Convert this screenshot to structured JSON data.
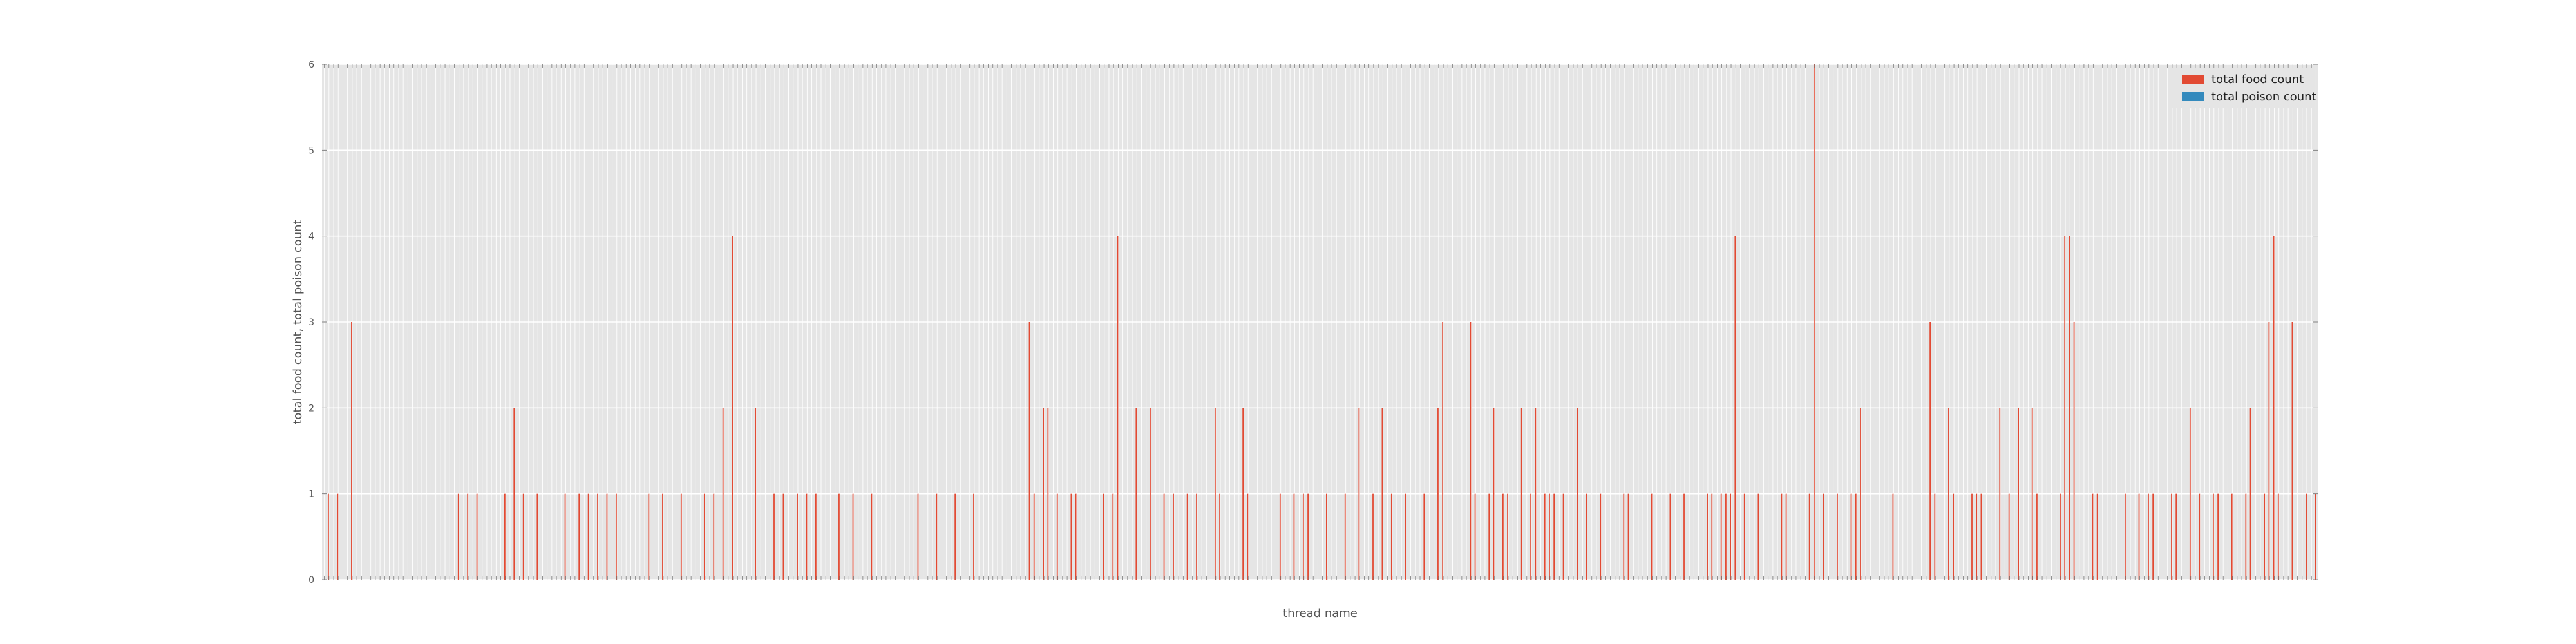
{
  "chart_data": {
    "type": "bar",
    "xlabel": "thread name",
    "ylabel": "total food count, total poison count",
    "ylim": [
      0,
      6
    ],
    "yticks": [
      0,
      1,
      2,
      3,
      4,
      5,
      6
    ],
    "grid": true,
    "legend_position": "top-right",
    "series": [
      {
        "name": "total food count",
        "color": "#e24a33",
        "values": [
          0,
          1,
          0,
          1,
          0,
          0,
          3,
          0,
          0,
          0,
          0,
          0,
          0,
          0,
          0,
          0,
          0,
          0,
          0,
          0,
          0,
          0,
          0,
          0,
          0,
          0,
          0,
          0,
          0,
          1,
          0,
          1,
          0,
          1,
          0,
          0,
          0,
          0,
          0,
          1,
          0,
          2,
          0,
          1,
          0,
          0,
          1,
          0,
          0,
          0,
          0,
          0,
          1,
          0,
          0,
          1,
          0,
          1,
          0,
          1,
          0,
          1,
          0,
          1,
          0,
          0,
          0,
          0,
          0,
          0,
          1,
          0,
          0,
          1,
          0,
          0,
          0,
          1,
          0,
          0,
          0,
          0,
          1,
          0,
          1,
          0,
          2,
          0,
          4,
          0,
          0,
          0,
          0,
          2,
          0,
          0,
          0,
          1,
          0,
          1,
          0,
          0,
          1,
          0,
          1,
          0,
          1,
          0,
          0,
          0,
          0,
          1,
          0,
          0,
          1,
          0,
          0,
          0,
          1,
          0,
          0,
          0,
          0,
          0,
          0,
          0,
          0,
          0,
          1,
          0,
          0,
          0,
          1,
          0,
          0,
          0,
          1,
          0,
          0,
          0,
          1,
          0,
          0,
          0,
          0,
          0,
          0,
          0,
          0,
          0,
          0,
          0,
          3,
          1,
          0,
          2,
          2,
          0,
          1,
          0,
          0,
          1,
          1,
          0,
          0,
          0,
          0,
          0,
          1,
          0,
          1,
          4,
          0,
          0,
          0,
          2,
          0,
          0,
          2,
          0,
          0,
          1,
          0,
          1,
          0,
          0,
          1,
          0,
          1,
          0,
          0,
          0,
          2,
          1,
          0,
          0,
          0,
          0,
          2,
          1,
          0,
          0,
          0,
          0,
          0,
          0,
          1,
          0,
          0,
          1,
          0,
          1,
          1,
          0,
          0,
          0,
          1,
          0,
          0,
          0,
          1,
          0,
          0,
          2,
          0,
          0,
          1,
          0,
          2,
          0,
          1,
          0,
          0,
          1,
          0,
          0,
          0,
          1,
          0,
          0,
          2,
          3,
          0,
          0,
          0,
          0,
          0,
          3,
          1,
          0,
          0,
          1,
          2,
          0,
          1,
          1,
          0,
          0,
          2,
          0,
          1,
          2,
          0,
          1,
          1,
          1,
          0,
          1,
          0,
          0,
          2,
          0,
          1,
          0,
          0,
          1,
          0,
          0,
          0,
          0,
          1,
          1,
          0,
          0,
          0,
          0,
          1,
          0,
          0,
          0,
          1,
          0,
          0,
          1,
          0,
          0,
          0,
          0,
          1,
          1,
          0,
          1,
          1,
          1,
          4,
          0,
          1,
          0,
          0,
          1,
          0,
          0,
          0,
          0,
          1,
          1,
          0,
          0,
          0,
          0,
          1,
          6,
          0,
          1,
          0,
          0,
          1,
          0,
          0,
          1,
          1,
          2,
          0,
          0,
          0,
          0,
          0,
          0,
          1,
          0,
          0,
          0,
          0,
          0,
          0,
          0,
          3,
          1,
          0,
          0,
          2,
          1,
          0,
          0,
          0,
          1,
          1,
          1,
          0,
          0,
          0,
          2,
          0,
          1,
          0,
          2,
          0,
          0,
          2,
          1,
          0,
          0,
          0,
          0,
          1,
          4,
          4,
          3,
          0,
          0,
          0,
          1,
          1,
          0,
          0,
          0,
          0,
          0,
          1,
          0,
          0,
          1,
          0,
          1,
          1,
          0,
          0,
          0,
          1,
          1,
          0,
          0,
          2,
          0,
          1,
          0,
          0,
          1,
          1,
          0,
          0,
          1,
          0,
          0,
          1,
          2,
          0,
          0,
          1,
          3,
          4,
          1,
          0,
          0,
          3,
          0,
          0,
          1,
          0,
          1
        ]
      },
      {
        "name": "total poison count",
        "color": "#348abd",
        "values": [
          0,
          0,
          0,
          0,
          0,
          0,
          0,
          0,
          0,
          0,
          0,
          0,
          0,
          0,
          0,
          0,
          0,
          0,
          0,
          0,
          0,
          0,
          0,
          0,
          0,
          0,
          0,
          0,
          0,
          0,
          0,
          0,
          0,
          0,
          0,
          0,
          0,
          0,
          0,
          0,
          0,
          0,
          0,
          0,
          0,
          0,
          0,
          0,
          0,
          0,
          0,
          0,
          0,
          0,
          0,
          0,
          0,
          0,
          0,
          0,
          0,
          0,
          0,
          0,
          0,
          0,
          0,
          0,
          0,
          0,
          0,
          0,
          0,
          0,
          0,
          0,
          0,
          0,
          0,
          0,
          0,
          0,
          0,
          0,
          0,
          0,
          0,
          0,
          0,
          0,
          0,
          0,
          0,
          0,
          0,
          0,
          0,
          0,
          0,
          0,
          0,
          0,
          0,
          0,
          0,
          0,
          0,
          0,
          0,
          0,
          0,
          0,
          0,
          0,
          0,
          0,
          0,
          0,
          0,
          0,
          0,
          0,
          0,
          0,
          0,
          0,
          0,
          0,
          0,
          0,
          0,
          0,
          0,
          0,
          0,
          0,
          0,
          0,
          0,
          0,
          0,
          0,
          0,
          0,
          0,
          0,
          0,
          0,
          0,
          0,
          0,
          0,
          0,
          0,
          0,
          0,
          0,
          0,
          0,
          0,
          0,
          0,
          0,
          0,
          0,
          0,
          0,
          0,
          0,
          0,
          0,
          0,
          0,
          0,
          0,
          0,
          0,
          0,
          0,
          0,
          0,
          0,
          0,
          0,
          0,
          0,
          0,
          0,
          0,
          0,
          0,
          0,
          0,
          0,
          0,
          0,
          0,
          0,
          0,
          0,
          0,
          0,
          0,
          0,
          0,
          0,
          0,
          0,
          0,
          0,
          0,
          0,
          0,
          0,
          0,
          0,
          0,
          0,
          0,
          0,
          0,
          0,
          0,
          0,
          0,
          0,
          0,
          0,
          0,
          0,
          0,
          0,
          0,
          0,
          0,
          0,
          0,
          0,
          0,
          0,
          0,
          0,
          0,
          0,
          0,
          0,
          0,
          0,
          0,
          0,
          0,
          0,
          0,
          0,
          0,
          0,
          0,
          0,
          0,
          0,
          0,
          0,
          0,
          0,
          0,
          0,
          0,
          0,
          0,
          0,
          0,
          0,
          0,
          0,
          0,
          0,
          0,
          0,
          0,
          0,
          0,
          0,
          0,
          0,
          0,
          0,
          0,
          0,
          0,
          0,
          0,
          0,
          0,
          0,
          0,
          0,
          0,
          0,
          0,
          0,
          0,
          0,
          0,
          0,
          0,
          0,
          0,
          0,
          0,
          0,
          0,
          0,
          0,
          0,
          0,
          0,
          0,
          0,
          0,
          0,
          0,
          0,
          0,
          0,
          0,
          0,
          0,
          0,
          0,
          0,
          0,
          0,
          0,
          0,
          0,
          0,
          0,
          0,
          0,
          0,
          0,
          0,
          0,
          0,
          0,
          0,
          0,
          0,
          0,
          0,
          0,
          0,
          0,
          0,
          0,
          0,
          0,
          0,
          0,
          0,
          0,
          0,
          0,
          0,
          0,
          0,
          0,
          0,
          0,
          0,
          0,
          0,
          0,
          0,
          0,
          0,
          0,
          0,
          0,
          0,
          0,
          0,
          0,
          0,
          0,
          0,
          0,
          0,
          0,
          0,
          0,
          0,
          0,
          0,
          0,
          0,
          0,
          0,
          0,
          0,
          0,
          0,
          0,
          0,
          0,
          0,
          0,
          0,
          0,
          0,
          0,
          0,
          0,
          0,
          0,
          0,
          0,
          0,
          0,
          0,
          0,
          0,
          0,
          0,
          0,
          0,
          0,
          0,
          0,
          0,
          0,
          0,
          0,
          0,
          0,
          0
        ]
      }
    ]
  }
}
